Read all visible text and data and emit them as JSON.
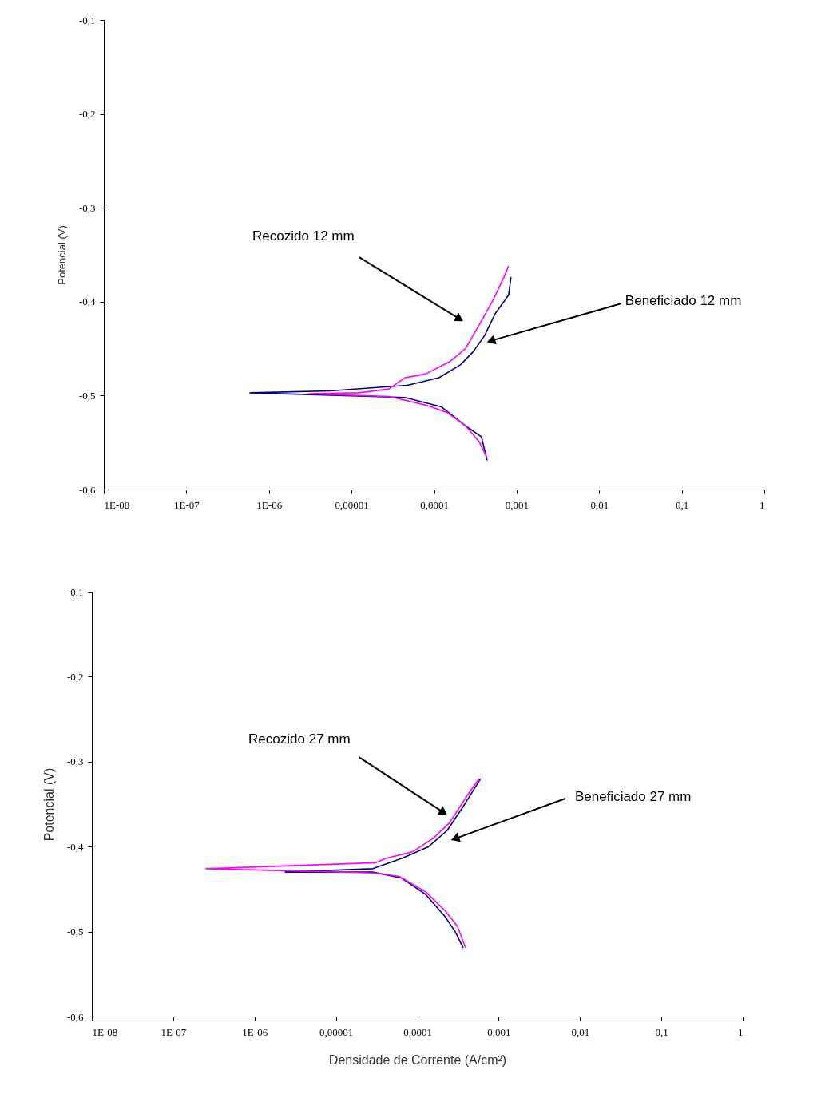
{
  "chart_data": [
    {
      "type": "line",
      "ylabel": "Potencial (V)",
      "log": "x",
      "xlim": [
        1e-08,
        1
      ],
      "ylim": [
        -0.6,
        -0.1
      ],
      "xticks": [
        {
          "value": 1e-08,
          "label": "1E-08"
        },
        {
          "value": 1e-07,
          "label": "1E-07"
        },
        {
          "value": 1e-06,
          "label": "1E-06"
        },
        {
          "value": 1e-05,
          "label": "0,00001"
        },
        {
          "value": 0.0001,
          "label": "0,0001"
        },
        {
          "value": 0.001,
          "label": "0,001"
        },
        {
          "value": 0.01,
          "label": "0,01"
        },
        {
          "value": 0.1,
          "label": "0,1"
        },
        1
      ],
      "yticks": [
        {
          "value": -0.6,
          "label": "-0,6"
        },
        {
          "value": -0.5,
          "label": "-0,5"
        },
        {
          "value": -0.4,
          "label": "-0,4"
        },
        {
          "value": -0.3,
          "label": "-0,3"
        },
        {
          "value": -0.2,
          "label": "-0,2"
        },
        {
          "value": -0.1,
          "label": "-0,1"
        }
      ],
      "grid": false,
      "marker": "none",
      "line_style": "solid",
      "series": [
        {
          "name": "Beneficiado 12 mm",
          "color": "#000080",
          "x": [
            0.000439,
            0.000375,
            0.00024,
            0.000123,
            4.43e-05,
            5.9e-07,
            5.46e-06,
            4.73e-05,
            0.000115,
            0.00021,
            0.0003,
            0.00041,
            0.000548,
            0.0008,
            0.000855
          ],
          "values": [
            -0.569,
            -0.544,
            -0.532,
            -0.512,
            -0.502,
            -0.497,
            -0.495,
            -0.489,
            -0.481,
            -0.467,
            -0.453,
            -0.436,
            -0.413,
            -0.393,
            -0.374
          ]
        },
        {
          "name": "Recozido 12 mm",
          "color": "#ff00ff",
          "x": [
            0.000439,
            0.000351,
            0.00024,
            0.000144,
            7.9e-05,
            2.84e-05,
            3.05e-06,
            1.24e-05,
            2.84e-05,
            4.43e-05,
            7.9e-05,
            0.000154,
            0.00024,
            0.000351,
            0.000513,
            0.000685,
            0.0008
          ],
          "values": [
            -0.566,
            -0.549,
            -0.532,
            -0.518,
            -0.51,
            -0.501,
            -0.498,
            -0.497,
            -0.493,
            -0.481,
            -0.477,
            -0.464,
            -0.45,
            -0.425,
            -0.399,
            -0.376,
            -0.362
          ]
        }
      ]
    },
    {
      "type": "line",
      "xlabel": "Densidade de Corrente (A/cm²)",
      "ylabel": "Potencial (V)",
      "log": "x",
      "xlim": [
        1e-08,
        1
      ],
      "ylim": [
        -0.6,
        -0.1
      ],
      "xticks": [
        {
          "value": 1e-08,
          "label": "1E-08"
        },
        {
          "value": 1e-07,
          "label": "1E-07"
        },
        {
          "value": 1e-06,
          "label": "1E-06"
        },
        {
          "value": 1e-05,
          "label": "0,00001"
        },
        {
          "value": 0.0001,
          "label": "0,0001"
        },
        {
          "value": 0.001,
          "label": "0,001"
        },
        {
          "value": 0.01,
          "label": "0,01"
        },
        {
          "value": 0.1,
          "label": "0,1"
        },
        1
      ],
      "yticks": [
        {
          "value": -0.6,
          "label": "-0,6"
        },
        {
          "value": -0.5,
          "label": "-0,5"
        },
        {
          "value": -0.4,
          "label": "-0,4"
        },
        {
          "value": -0.3,
          "label": "-0,3"
        },
        {
          "value": -0.2,
          "label": "-0,2"
        },
        {
          "value": -0.1,
          "label": "-0,1"
        }
      ],
      "grid": false,
      "marker": "none",
      "line_style": "solid",
      "series": [
        {
          "name": "Beneficiado 27 mm",
          "color": "#000080",
          "x": [
            0.000366,
            0.000292,
            0.000218,
            0.000126,
            6.4e-05,
            2.84e-05,
            2.37e-06,
            2.84e-05,
            6.4e-05,
            0.000138,
            0.000233,
            0.000366,
            0.0006
          ],
          "values": [
            -0.519,
            -0.5,
            -0.482,
            -0.456,
            -0.437,
            -0.43,
            -0.43,
            -0.426,
            -0.414,
            -0.4,
            -0.381,
            -0.353,
            -0.32
          ]
        },
        {
          "name": "Recozido 27 mm",
          "color": "#ff00ff",
          "x": [
            0.000391,
            0.000313,
            0.000218,
            0.000126,
            6e-05,
            3.05e-05,
            2.53e-07,
            3.05e-05,
            4.09e-05,
            8.8e-05,
            0.000158,
            0.000249,
            0.000391,
            0.000575
          ],
          "values": [
            -0.519,
            -0.494,
            -0.475,
            -0.453,
            -0.435,
            -0.431,
            -0.426,
            -0.419,
            -0.414,
            -0.406,
            -0.39,
            -0.372,
            -0.343,
            -0.32
          ]
        }
      ]
    }
  ]
}
